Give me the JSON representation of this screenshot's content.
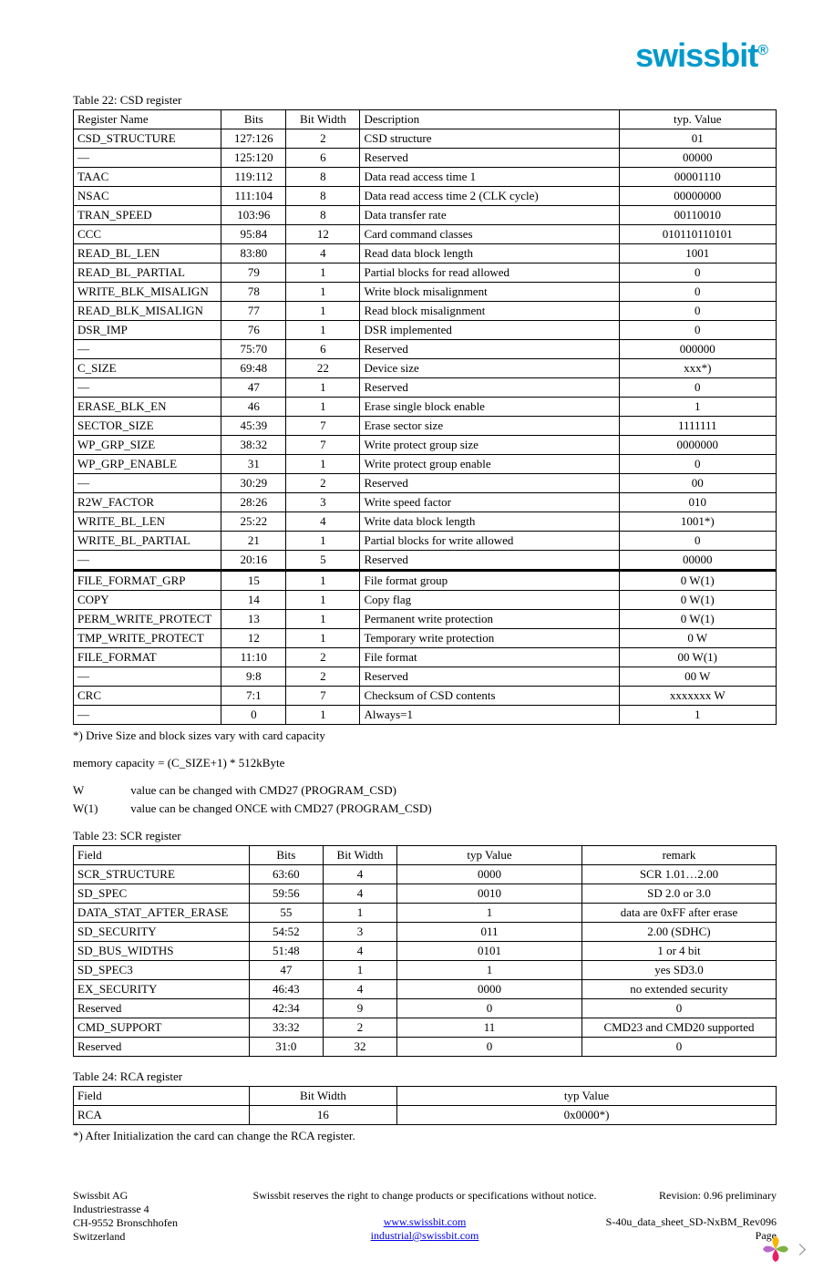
{
  "brand": {
    "name": "swissbit",
    "reg": "®",
    "color": "#0099cc"
  },
  "table22": {
    "title": "Table 22: CSD register",
    "headers": [
      "Register Name",
      "Bits",
      "Bit Width",
      "Description",
      "typ. Value"
    ],
    "rows": [
      {
        "name": "CSD_STRUCTURE",
        "bits": "127:126",
        "w": "2",
        "desc": "CSD structure",
        "val": "01"
      },
      {
        "name": "—",
        "bits": "125:120",
        "w": "6",
        "desc": "Reserved",
        "val": "00000"
      },
      {
        "name": "TAAC",
        "bits": "119:112",
        "w": "8",
        "desc": "Data read access time 1",
        "val": "00001110"
      },
      {
        "name": "NSAC",
        "bits": "111:104",
        "w": "8",
        "desc": "Data read access time 2 (CLK cycle)",
        "val": "00000000"
      },
      {
        "name": "TRAN_SPEED",
        "bits": "103:96",
        "w": "8",
        "desc": "Data transfer rate",
        "val": "00110010"
      },
      {
        "name": "CCC",
        "bits": "95:84",
        "w": "12",
        "desc": "Card command classes",
        "val": "010110110101"
      },
      {
        "name": "READ_BL_LEN",
        "bits": "83:80",
        "w": "4",
        "desc": "Read data block length",
        "val": "1001"
      },
      {
        "name": "READ_BL_PARTIAL",
        "bits": "79",
        "w": "1",
        "desc": "Partial blocks for read allowed",
        "val": "0"
      },
      {
        "name": "WRITE_BLK_MISALIGN",
        "bits": "78",
        "w": "1",
        "desc": "Write block misalignment",
        "val": "0"
      },
      {
        "name": "READ_BLK_MISALIGN",
        "bits": "77",
        "w": "1",
        "desc": "Read block misalignment",
        "val": "0"
      },
      {
        "name": "DSR_IMP",
        "bits": "76",
        "w": "1",
        "desc": "DSR implemented",
        "val": "0"
      },
      {
        "name": "—",
        "bits": "75:70",
        "w": "6",
        "desc": "Reserved",
        "val": "000000"
      },
      {
        "name": "C_SIZE",
        "bits": "69:48",
        "w": "22",
        "desc": "Device size",
        "val": "xxx*)"
      },
      {
        "name": "—",
        "bits": "47",
        "w": "1",
        "desc": "Reserved",
        "val": "0"
      },
      {
        "name": "ERASE_BLK_EN",
        "bits": "46",
        "w": "1",
        "desc": "Erase single block enable",
        "val": "1"
      },
      {
        "name": "SECTOR_SIZE",
        "bits": "45:39",
        "w": "7",
        "desc": "Erase sector size",
        "val": "1111111"
      },
      {
        "name": "WP_GRP_SIZE",
        "bits": "38:32",
        "w": "7",
        "desc": "Write protect group size",
        "val": "0000000"
      },
      {
        "name": "WP_GRP_ENABLE",
        "bits": "31",
        "w": "1",
        "desc": "Write protect group enable",
        "val": "0"
      },
      {
        "name": "—",
        "bits": "30:29",
        "w": "2",
        "desc": "Reserved",
        "val": "00"
      },
      {
        "name": "R2W_FACTOR",
        "bits": "28:26",
        "w": "3",
        "desc": "Write speed factor",
        "val": "010"
      },
      {
        "name": "WRITE_BL_LEN",
        "bits": "25:22",
        "w": "4",
        "desc": "Write data block length",
        "val": "1001*)"
      },
      {
        "name": "WRITE_BL_PARTIAL",
        "bits": "21",
        "w": "1",
        "desc": "Partial blocks for write allowed",
        "val": "0"
      },
      {
        "name": "—",
        "bits": "20:16",
        "w": "5",
        "desc": "Reserved",
        "val": "00000"
      },
      {
        "name": "FILE_FORMAT_GRP",
        "bits": "15",
        "w": "1",
        "desc": "File format group",
        "val": "0 W(1)",
        "thick": true
      },
      {
        "name": "COPY",
        "bits": "14",
        "w": "1",
        "desc": "Copy flag",
        "val": "0 W(1)"
      },
      {
        "name": "PERM_WRITE_PROTECT",
        "bits": "13",
        "w": "1",
        "desc": "Permanent write protection",
        "val": "0 W(1)"
      },
      {
        "name": "TMP_WRITE_PROTECT",
        "bits": "12",
        "w": "1",
        "desc": "Temporary write protection",
        "val": "0 W"
      },
      {
        "name": "FILE_FORMAT",
        "bits": "11:10",
        "w": "2",
        "desc": "File format",
        "val": "00 W(1)"
      },
      {
        "name": "—",
        "bits": "9:8",
        "w": "2",
        "desc": "Reserved",
        "val": "00 W"
      },
      {
        "name": "CRC",
        "bits": "7:1",
        "w": "7",
        "desc": "Checksum of CSD contents",
        "val": "xxxxxxx W"
      },
      {
        "name": "—",
        "bits": "0",
        "w": "1",
        "desc": "Always=1",
        "val": "1"
      }
    ]
  },
  "notes": {
    "n1": "*) Drive Size and block sizes vary with card capacity",
    "n2": "memory capacity = (C_SIZE+1) * 512kByte",
    "w_label": "W",
    "w_text": "value can be changed with CMD27 (PROGRAM_CSD)",
    "w1_label": "W(1)",
    "w1_text": "value can be changed ONCE with CMD27 (PROGRAM_CSD)"
  },
  "table23": {
    "title": "Table 23: SCR register",
    "headers": [
      "Field",
      "Bits",
      "Bit Width",
      "typ Value",
      "remark"
    ],
    "rows": [
      {
        "f": "SCR_STRUCTURE",
        "b": "63:60",
        "w": "4",
        "v": "0000",
        "r": "SCR 1.01…2.00"
      },
      {
        "f": "SD_SPEC",
        "b": "59:56",
        "w": "4",
        "v": "0010",
        "r": "SD 2.0 or 3.0"
      },
      {
        "f": "DATA_STAT_AFTER_ERASE",
        "b": "55",
        "w": "1",
        "v": "1",
        "r": "data are 0xFF after erase"
      },
      {
        "f": "SD_SECURITY",
        "b": "54:52",
        "w": "3",
        "v": "011",
        "r": "2.00 (SDHC)"
      },
      {
        "f": "SD_BUS_WIDTHS",
        "b": "51:48",
        "w": "4",
        "v": "0101",
        "r": "1 or 4 bit"
      },
      {
        "f": "SD_SPEC3",
        "b": "47",
        "w": "1",
        "v": "1",
        "r": "yes  SD3.0"
      },
      {
        "f": "EX_SECURITY",
        "b": "46:43",
        "w": "4",
        "v": "0000",
        "r": "no extended security"
      },
      {
        "f": "Reserved",
        "b": "42:34",
        "w": "9",
        "v": "0",
        "r": "0"
      },
      {
        "f": "CMD_SUPPORT",
        "b": "33:32",
        "w": "2",
        "v": "11",
        "r": "CMD23 and CMD20 supported"
      },
      {
        "f": "Reserved",
        "b": "31:0",
        "w": "32",
        "v": "0",
        "r": "0"
      }
    ]
  },
  "table24": {
    "title": "Table 24: RCA register",
    "headers": [
      "Field",
      "Bit Width",
      "typ Value"
    ],
    "rows": [
      {
        "f": "RCA",
        "w": "16",
        "v": "0x0000*)"
      }
    ],
    "note": "*) After Initialization the card can change the RCA register."
  },
  "footer": {
    "company": "Swissbit AG",
    "addr1": "Industriestrasse 4",
    "addr2": "CH-9552 Bronschhofen",
    "country": "Switzerland",
    "notice": "Swissbit reserves the right to change products or specifications without notice.",
    "url": "www.swissbit.com",
    "email": "industrial@swissbit.com",
    "revision": "Revision: 0.96 preliminary",
    "docref": "S-40u_data_sheet_SD-NxBM_Rev096",
    "page": "Page"
  }
}
